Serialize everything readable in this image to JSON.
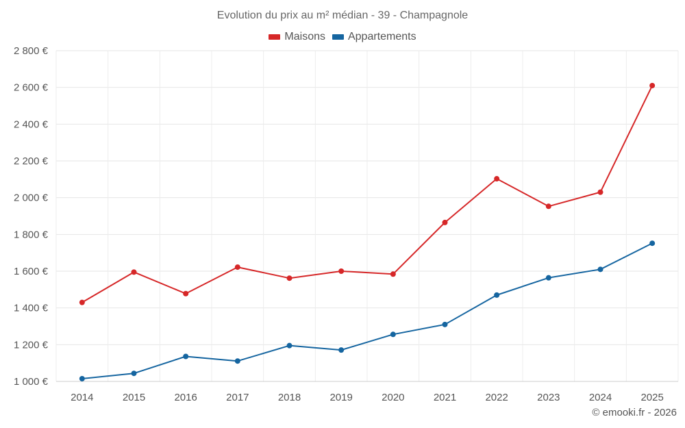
{
  "chart_data": {
    "type": "line",
    "title": "Evolution du prix au m² médian - 39 - Champagnole",
    "categories": [
      "2014",
      "2015",
      "2016",
      "2017",
      "2018",
      "2019",
      "2020",
      "2021",
      "2022",
      "2023",
      "2024",
      "2025"
    ],
    "series": [
      {
        "name": "Maisons",
        "color": "#d62728",
        "values": [
          1430,
          1595,
          1478,
          1622,
          1562,
          1600,
          1584,
          1865,
          2103,
          1953,
          2030,
          2610
        ]
      },
      {
        "name": "Appartements",
        "color": "#1565a0",
        "values": [
          1015,
          1044,
          1136,
          1111,
          1195,
          1171,
          1256,
          1310,
          1470,
          1564,
          1610,
          1752
        ]
      }
    ],
    "ylim": [
      1000,
      2800
    ],
    "yticks": [
      1000,
      1200,
      1400,
      1600,
      1800,
      2000,
      2200,
      2400,
      2600,
      2800
    ],
    "ytick_labels": [
      "1 000 €",
      "1 200 €",
      "1 400 €",
      "1 600 €",
      "1 800 €",
      "2 000 €",
      "2 200 €",
      "2 400 €",
      "2 600 €",
      "2 800 €"
    ],
    "grid": true,
    "legend_position": "top-center",
    "xlabel": "",
    "ylabel": ""
  },
  "credit": "© emooki.fr - 2026"
}
